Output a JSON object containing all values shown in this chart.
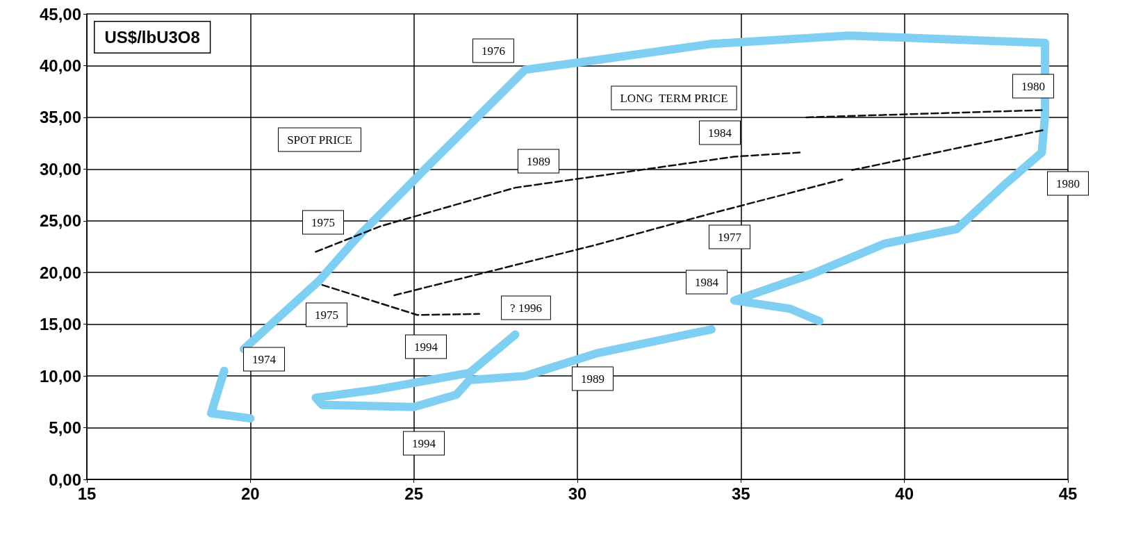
{
  "chart_data": {
    "type": "line",
    "ylabel": "US$/lbU3O8",
    "xlim": [
      15,
      45
    ],
    "xticks": [
      15,
      20,
      25,
      30,
      35,
      40,
      45
    ],
    "ylim": [
      0,
      45
    ],
    "yticks": [
      {
        "value": 0,
        "label": "0,00"
      },
      {
        "value": 5,
        "label": "5,00"
      },
      {
        "value": 10,
        "label": "10,00"
      },
      {
        "value": 15,
        "label": "15,00"
      },
      {
        "value": 20,
        "label": "20,00"
      },
      {
        "value": 25,
        "label": "25,00"
      },
      {
        "value": 30,
        "label": "30,00"
      },
      {
        "value": 35,
        "label": "35,00"
      },
      {
        "value": 40,
        "label": "40,00"
      },
      {
        "value": 45,
        "label": "45,00"
      }
    ],
    "grid": true,
    "series": [
      {
        "color": "#7fcff2",
        "line_style": "solid",
        "x": [
          19.2,
          18.8,
          20.0,
          null,
          19.8,
          22.1,
          23.3,
          25.5,
          28.4,
          30.5,
          34.1,
          38.3,
          44.3,
          44.3,
          44.2,
          43.1,
          41.6,
          39.4,
          37.2,
          34.8,
          36.5,
          37.4,
          null,
          34.1,
          30.6,
          28.4,
          26.7,
          26.3,
          25.0,
          22.2,
          22.0,
          23.9,
          26.7,
          28.1
        ],
        "values": [
          10.5,
          6.4,
          5.9,
          null,
          12.6,
          19.2,
          23.5,
          30.5,
          39.6,
          40.5,
          42.1,
          42.9,
          42.2,
          35.2,
          31.6,
          28.6,
          24.2,
          22.8,
          19.9,
          17.3,
          16.5,
          15.3,
          null,
          14.5,
          12.2,
          10.0,
          9.6,
          8.2,
          7.0,
          7.2,
          7.9,
          8.7,
          10.3,
          14.0
        ]
      },
      {
        "color": "#111111",
        "line_style": "dashed",
        "x": [
          22.0,
          24.0,
          28.1,
          34.8,
          36.8,
          null,
          37.0,
          44.2,
          null,
          38.4,
          44.3,
          null,
          24.4,
          30.6,
          34.2,
          38.1,
          null,
          22.2,
          25.1,
          27.0
        ],
        "values": [
          22.0,
          24.5,
          28.2,
          31.2,
          31.6,
          null,
          35.0,
          35.7,
          null,
          29.9,
          33.8,
          null,
          17.8,
          22.7,
          25.8,
          29.0,
          null,
          18.8,
          15.9,
          16.0
        ]
      }
    ],
    "annotations": [
      "1976",
      "SPOT PRICE",
      "LONG  TERM PRICE",
      "1984",
      "1989",
      "1980",
      "1980",
      "1975",
      "1977",
      "1984",
      "1975",
      "1994",
      "? 1996",
      "1974",
      "1989",
      "1994"
    ]
  }
}
